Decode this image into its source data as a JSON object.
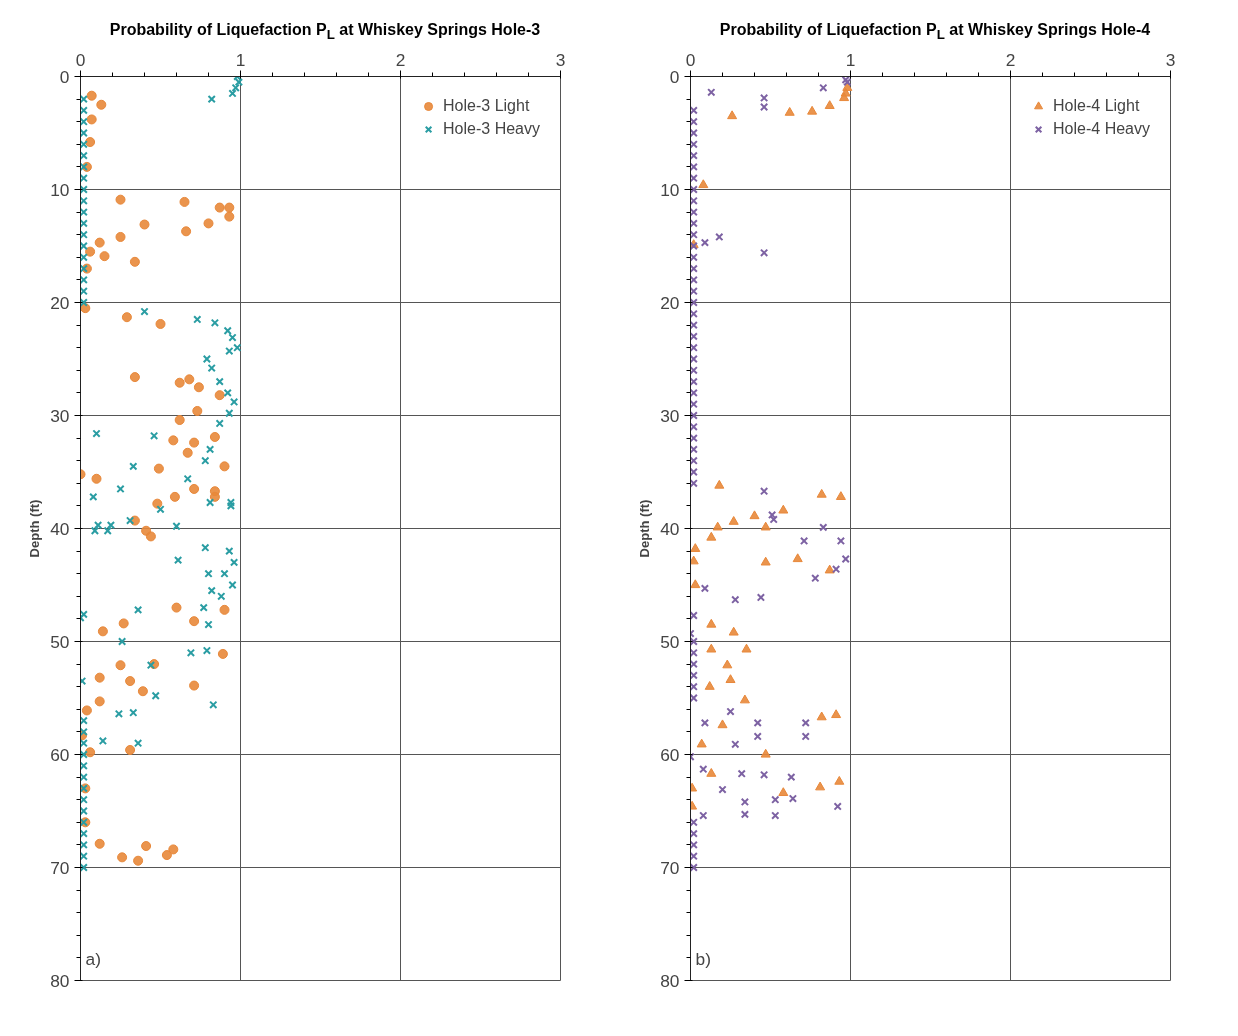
{
  "chart_data": [
    {
      "type": "scatter",
      "title": "Probability of Liquefaction P$_{L}$ at Whiskey Springs Hole-3",
      "ylabel": "Depth (ft)",
      "annotations": [
        "a)"
      ],
      "xlim": [
        0,
        3
      ],
      "xticks": [
        0,
        1,
        2,
        3
      ],
      "ylim": [
        80,
        0
      ],
      "yticks": [
        0,
        10,
        20,
        30,
        40,
        50,
        60,
        70,
        80
      ],
      "grid": true,
      "legend": "top right",
      "series": [
        {
          "name": "Hole-3 Light",
          "color": "#e8883a",
          "marker": "circle",
          "x": [
            0.07,
            0.13,
            0.07,
            0.06,
            0.04,
            0.04,
            0.25,
            0.65,
            0.4,
            0.66,
            0.8,
            0.87,
            0.93,
            0.93,
            0.25,
            0.12,
            0.15,
            0.06,
            0.34,
            0.03,
            0.29,
            0.5,
            0.34,
            0.62,
            0.68,
            0.74,
            0.87,
            0.73,
            0.62,
            0.58,
            0.71,
            0.84,
            0.67,
            0.9,
            0.49,
            0.0,
            0.1,
            0.71,
            0.84,
            0.48,
            0.59,
            0.84,
            0.41,
            0.34,
            0.44,
            0.9,
            0.71,
            0.6,
            0.14,
            0.27,
            0.89,
            0.71,
            0.12,
            0.31,
            0.39,
            0.46,
            0.25,
            0.04,
            0.12,
            0.01,
            0.31,
            0.06,
            0.03,
            0.03,
            0.12,
            0.26,
            0.36,
            0.41,
            0.54,
            0.58
          ],
          "values": [
            1.7,
            2.5,
            3.8,
            5.8,
            8,
            17,
            10.9,
            11.1,
            13.1,
            13.7,
            13.0,
            11.6,
            11.6,
            12.4,
            14.2,
            14.7,
            15.9,
            15.5,
            16.4,
            20.5,
            21.3,
            21.9,
            26.6,
            27.1,
            26.8,
            27.5,
            28.2,
            29.6,
            30.4,
            32.2,
            32.4,
            31.9,
            33.3,
            34.5,
            34.7,
            35.2,
            35.6,
            36.5,
            36.7,
            37.8,
            37.2,
            37.2,
            40.2,
            39.3,
            40.7,
            47.2,
            48.2,
            47.0,
            49.1,
            48.4,
            51.1,
            53.9,
            53.2,
            53.5,
            54.4,
            52.0,
            52.1,
            56.1,
            55.3,
            58.3,
            59.6,
            59.8,
            63,
            66,
            67.9,
            69.1,
            69.4,
            68.1,
            68.9,
            68.4
          ]
        },
        {
          "name": "Hole-3 Heavy",
          "color": "#2a9da3",
          "marker": "cross",
          "x": [
            0.98,
            0.99,
            0.97,
            0.95,
            0.82,
            0.02,
            0.02,
            0.02,
            0.02,
            0.02,
            0.02,
            0.02,
            0.02,
            0.02,
            0.02,
            0.02,
            0.02,
            0.02,
            0.02,
            0.02,
            0.02,
            0.02,
            0.02,
            0.02,
            0.4,
            0.73,
            0.84,
            0.92,
            0.95,
            0.98,
            0.93,
            0.79,
            0.82,
            0.87,
            0.92,
            0.96,
            0.93,
            0.87,
            0.1,
            0.46,
            0.33,
            0.81,
            0.78,
            0.67,
            0.08,
            0.25,
            0.81,
            0.94,
            0.11,
            0.19,
            0.09,
            0.17,
            0.31,
            0.5,
            0.6,
            0.94,
            0.61,
            0.78,
            0.93,
            0.96,
            0.9,
            0.95,
            0.88,
            0.8,
            0.77,
            0.82,
            0.8,
            0.36,
            0.0,
            0.02,
            0.69,
            0.79,
            0.26,
            0.44,
            0.47,
            0.83,
            0.33,
            0.24,
            0.14,
            0.36,
            0.01,
            0.02,
            0.02,
            0.02,
            0.02,
            0.02,
            0.02,
            0.02,
            0.02,
            0.02,
            0.02,
            0.02,
            0.02,
            0.02,
            0.02
          ],
          "values": [
            0,
            0.5,
            1,
            1.5,
            2.0,
            2,
            3,
            4,
            5,
            6,
            7,
            8,
            9,
            10,
            11,
            12,
            13,
            14,
            15,
            16,
            17,
            18,
            19,
            20,
            20.8,
            21.5,
            21.8,
            22.5,
            23.1,
            24,
            24.3,
            25.0,
            25.8,
            27,
            28,
            28.8,
            29.8,
            30.7,
            31.6,
            31.8,
            34.5,
            33,
            34,
            35.6,
            37.2,
            36.5,
            37.7,
            37.7,
            39.7,
            39.7,
            40.2,
            40.2,
            39.3,
            38.3,
            39.8,
            38.0,
            42.8,
            41.7,
            42,
            43,
            44,
            45,
            46,
            44,
            47,
            45.5,
            48.5,
            47.2,
            47.9,
            47.6,
            51,
            50.8,
            50.0,
            52.1,
            54.8,
            55.6,
            56.3,
            56.4,
            58.8,
            59.0,
            53.5,
            57,
            58,
            59,
            60,
            61,
            62,
            63,
            64,
            65,
            66,
            67,
            68,
            69,
            70
          ]
        }
      ]
    },
    {
      "type": "scatter",
      "title": "Probability of Liquefaction P$_{L}$ at Whiskey Springs Hole-4",
      "ylabel": "Depth (ft)",
      "annotations": [
        "b)"
      ],
      "xlim": [
        0,
        3
      ],
      "xticks": [
        0,
        1,
        2,
        3
      ],
      "ylim": [
        80,
        0
      ],
      "yticks": [
        0,
        10,
        20,
        30,
        40,
        50,
        60,
        70,
        80
      ],
      "grid": true,
      "legend": "top right",
      "series": [
        {
          "name": "Hole-4 Light",
          "color": "#e8883a",
          "marker": "triangle",
          "x": [
            0.26,
            0.62,
            0.76,
            0.87,
            0.96,
            0.97,
            0.98,
            0.08,
            0.02,
            0.18,
            0.4,
            0.27,
            0.17,
            0.03,
            0.13,
            0.58,
            0.47,
            0.67,
            0.94,
            0.82,
            0.87,
            0.47,
            0.02,
            0.03,
            0.13,
            0.27,
            0.35,
            0.13,
            0.23,
            0.12,
            0.25,
            0.34,
            0.2,
            0.07,
            0.82,
            0.91,
            0.13,
            0.47,
            0.58,
            0.81,
            0.93,
            0.01,
            0.01
          ],
          "values": [
            3.5,
            3.2,
            3.1,
            2.6,
            1.9,
            1.5,
            1.0,
            9.6,
            14.9,
            36.2,
            38.9,
            39.4,
            39.9,
            41.8,
            40.8,
            38.4,
            39.9,
            42.7,
            37.2,
            37.0,
            43.7,
            43.0,
            42.9,
            45,
            48.5,
            49.2,
            50.7,
            50.7,
            52.1,
            54.0,
            53.4,
            55.2,
            57.4,
            59.1,
            56.7,
            56.5,
            61.7,
            60.0,
            63.4,
            62.9,
            62.4,
            64.6,
            63
          ]
        },
        {
          "name": "Hole-4 Heavy",
          "color": "#7d62a3",
          "marker": "cross",
          "x": [
            0.13,
            0.46,
            0.46,
            0.83,
            0.97,
            0.98,
            0.02,
            0.02,
            0.02,
            0.02,
            0.02,
            0.02,
            0.02,
            0.02,
            0.02,
            0.02,
            0.02,
            0.02,
            0.02,
            0.02,
            0.02,
            0.02,
            0.02,
            0.02,
            0.02,
            0.02,
            0.02,
            0.02,
            0.02,
            0.02,
            0.02,
            0.02,
            0.02,
            0.02,
            0.02,
            0.02,
            0.02,
            0.02,
            0.02,
            0.02,
            0.18,
            0.46,
            0.09,
            0.46,
            0.52,
            0.51,
            0.83,
            0.71,
            0.94,
            0.97,
            0.91,
            0.78,
            0.09,
            0.28,
            0.44,
            0.02,
            0.0,
            0.02,
            0.02,
            0.02,
            0.02,
            0.02,
            0.02,
            0.09,
            0.25,
            0.42,
            0.72,
            0.72,
            0.28,
            0.42,
            0.08,
            0.32,
            0.46,
            0.63,
            0.2,
            0.34,
            0.53,
            0.64,
            0.34,
            0.53,
            0.92,
            0.08,
            0.0,
            0.02,
            0.02,
            0.02,
            0.02,
            0.02
          ],
          "values": [
            1.4,
            1.9,
            2.7,
            1.0,
            0.3,
            0.5,
            3,
            4,
            5,
            6,
            7,
            8,
            9,
            10,
            11,
            12,
            13,
            14,
            15,
            16,
            17,
            18,
            19,
            20,
            21,
            22,
            23,
            24,
            25,
            26,
            27,
            28,
            29,
            30,
            31,
            32,
            33,
            34,
            35,
            36,
            14.2,
            15.6,
            14.7,
            36.7,
            39.2,
            38.8,
            39.9,
            41.1,
            41.1,
            42.7,
            43.6,
            44.4,
            45.3,
            46.3,
            46.1,
            47.7,
            49.3,
            50,
            51,
            52,
            53,
            54,
            55,
            57.2,
            56.2,
            57.2,
            57.2,
            58.4,
            59.1,
            58.4,
            61.3,
            61.7,
            61.8,
            62.0,
            63.1,
            64.2,
            64.0,
            63.9,
            65.3,
            65.4,
            64.6,
            65.4,
            60.2,
            66,
            67,
            68,
            69,
            70
          ]
        }
      ]
    }
  ]
}
